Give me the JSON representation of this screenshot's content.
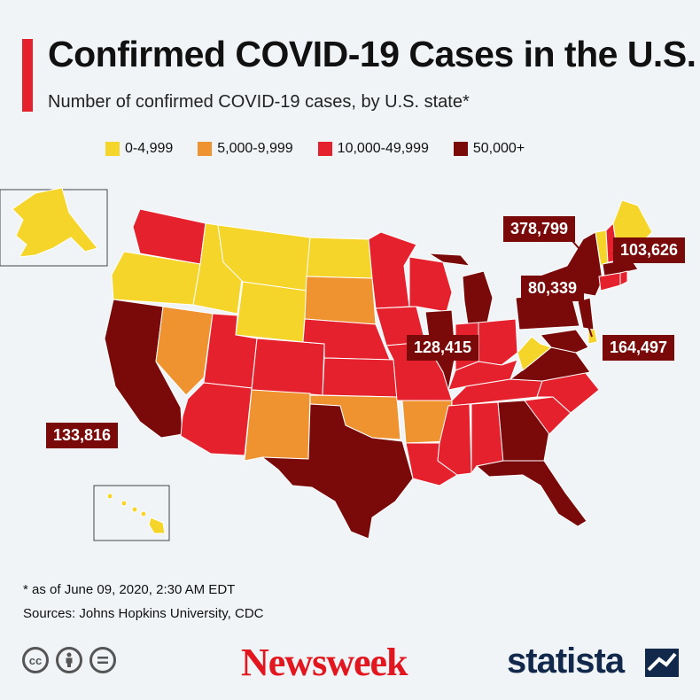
{
  "header": {
    "title": "Confirmed COVID-19 Cases in the U.S.",
    "subtitle": "Number of confirmed COVID-19 cases, by U.S. state*"
  },
  "colors": {
    "accent": "#e5212d",
    "bin_low": "#f6d52b",
    "bin_mid": "#ef9230",
    "bin_high": "#e5212d",
    "bin_top": "#7a0a0a",
    "newsweek": "#e2161f",
    "statista": "#13294b"
  },
  "legend": [
    {
      "label": "0-4,999",
      "color": "#f6d52b"
    },
    {
      "label": "5,000-9,999",
      "color": "#ef9230"
    },
    {
      "label": "10,000-49,999",
      "color": "#e5212d"
    },
    {
      "label": "50,000+",
      "color": "#7a0a0a"
    }
  ],
  "callouts": {
    "new_york": "378,799",
    "massachusetts": "103,626",
    "pennsylvania": "80,339",
    "illinois": "128,415",
    "new_jersey": "164,497",
    "california": "133,816"
  },
  "footer": {
    "note": "* as of June 09, 2020, 2:30 AM EDT",
    "sources": "Sources: Johns Hopkins University, CDC",
    "license_icons": [
      "cc-icon",
      "attribution-icon",
      "no-derivatives-icon"
    ],
    "newsweek_logo": "Newsweek",
    "statista_logo": "statista"
  }
}
